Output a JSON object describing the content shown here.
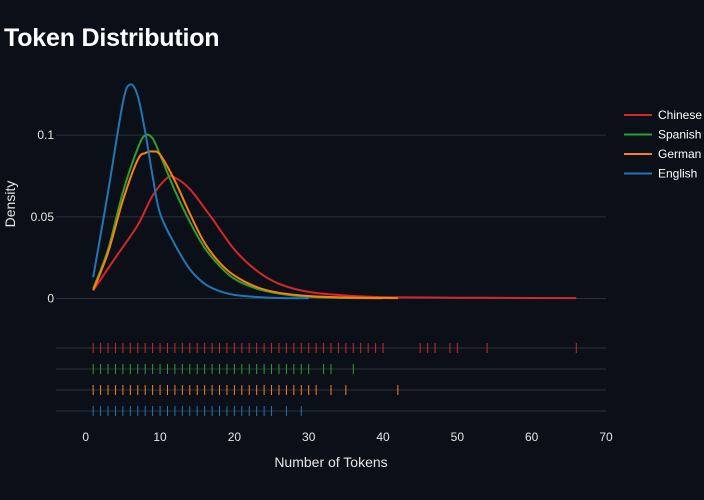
{
  "chart_data": {
    "type": "line",
    "title": "Token Distribution",
    "xlabel": "Number of Tokens",
    "ylabel": "Density",
    "xlim": [
      -4,
      70
    ],
    "ylim": [
      -0.004,
      0.135
    ],
    "x_ticks": [
      0,
      10,
      20,
      30,
      40,
      50,
      60,
      70
    ],
    "y_ticks": [
      0,
      0.05,
      0.1
    ],
    "y_tick_labels": [
      "0",
      "0.05",
      "0.1"
    ],
    "grid": true,
    "legend_position": "top-right",
    "series": [
      {
        "name": "Chinese",
        "color": "#d62728",
        "x": [
          1,
          4,
          7,
          9,
          11,
          12,
          14,
          17,
          20,
          23,
          26,
          30,
          35,
          40,
          50,
          60,
          66
        ],
        "y": [
          0.005,
          0.025,
          0.045,
          0.063,
          0.074,
          0.074,
          0.067,
          0.049,
          0.03,
          0.017,
          0.009,
          0.004,
          0.0018,
          0.0008,
          0.0005,
          0.0003,
          0.0002
        ],
        "rug": [
          1,
          2,
          3,
          4,
          5,
          6,
          7,
          8,
          9,
          10,
          11,
          12,
          13,
          14,
          15,
          16,
          17,
          18,
          19,
          20,
          21,
          22,
          23,
          24,
          25,
          26,
          27,
          28,
          29,
          30,
          31,
          32,
          33,
          34,
          35,
          36,
          37,
          38,
          39,
          40,
          45,
          46,
          47,
          49,
          50,
          54,
          66
        ]
      },
      {
        "name": "Spanish",
        "color": "#2ca02c",
        "x": [
          1,
          3,
          5,
          7,
          8,
          9,
          10,
          12,
          14,
          16,
          18,
          20,
          23,
          26,
          30,
          35,
          40
        ],
        "y": [
          0.006,
          0.03,
          0.065,
          0.092,
          0.1,
          0.098,
          0.088,
          0.066,
          0.047,
          0.031,
          0.02,
          0.012,
          0.006,
          0.003,
          0.001,
          0.0003,
          0.0001
        ],
        "rug": [
          1,
          2,
          3,
          4,
          5,
          6,
          7,
          8,
          9,
          10,
          11,
          12,
          13,
          14,
          15,
          16,
          17,
          18,
          19,
          20,
          21,
          22,
          23,
          24,
          25,
          26,
          27,
          28,
          29,
          30,
          32,
          33,
          36
        ]
      },
      {
        "name": "German",
        "color": "#ff7f0e",
        "x": [
          1,
          3,
          5,
          7,
          8,
          9,
          10,
          12,
          14,
          16,
          18,
          20,
          23,
          26,
          30,
          35,
          42
        ],
        "y": [
          0.005,
          0.028,
          0.06,
          0.085,
          0.089,
          0.09,
          0.088,
          0.072,
          0.052,
          0.034,
          0.022,
          0.014,
          0.007,
          0.0035,
          0.0015,
          0.0006,
          0.0002
        ],
        "rug": [
          1,
          2,
          3,
          4,
          5,
          6,
          7,
          8,
          9,
          10,
          11,
          12,
          13,
          14,
          15,
          16,
          17,
          18,
          19,
          20,
          21,
          22,
          23,
          24,
          25,
          26,
          27,
          28,
          29,
          30,
          31,
          33,
          35,
          42
        ]
      },
      {
        "name": "English",
        "color": "#1f77b4",
        "x": [
          1,
          3,
          5,
          6,
          7,
          8,
          9,
          10,
          12,
          14,
          16,
          18,
          20,
          23,
          26,
          30
        ],
        "y": [
          0.013,
          0.065,
          0.12,
          0.131,
          0.124,
          0.102,
          0.075,
          0.052,
          0.033,
          0.018,
          0.009,
          0.0045,
          0.0022,
          0.0009,
          0.0003,
          0.0001
        ],
        "rug": [
          1,
          2,
          3,
          4,
          5,
          6,
          7,
          8,
          9,
          10,
          11,
          12,
          13,
          14,
          15,
          16,
          17,
          18,
          19,
          20,
          21,
          22,
          23,
          24,
          25,
          27,
          29
        ]
      }
    ]
  }
}
